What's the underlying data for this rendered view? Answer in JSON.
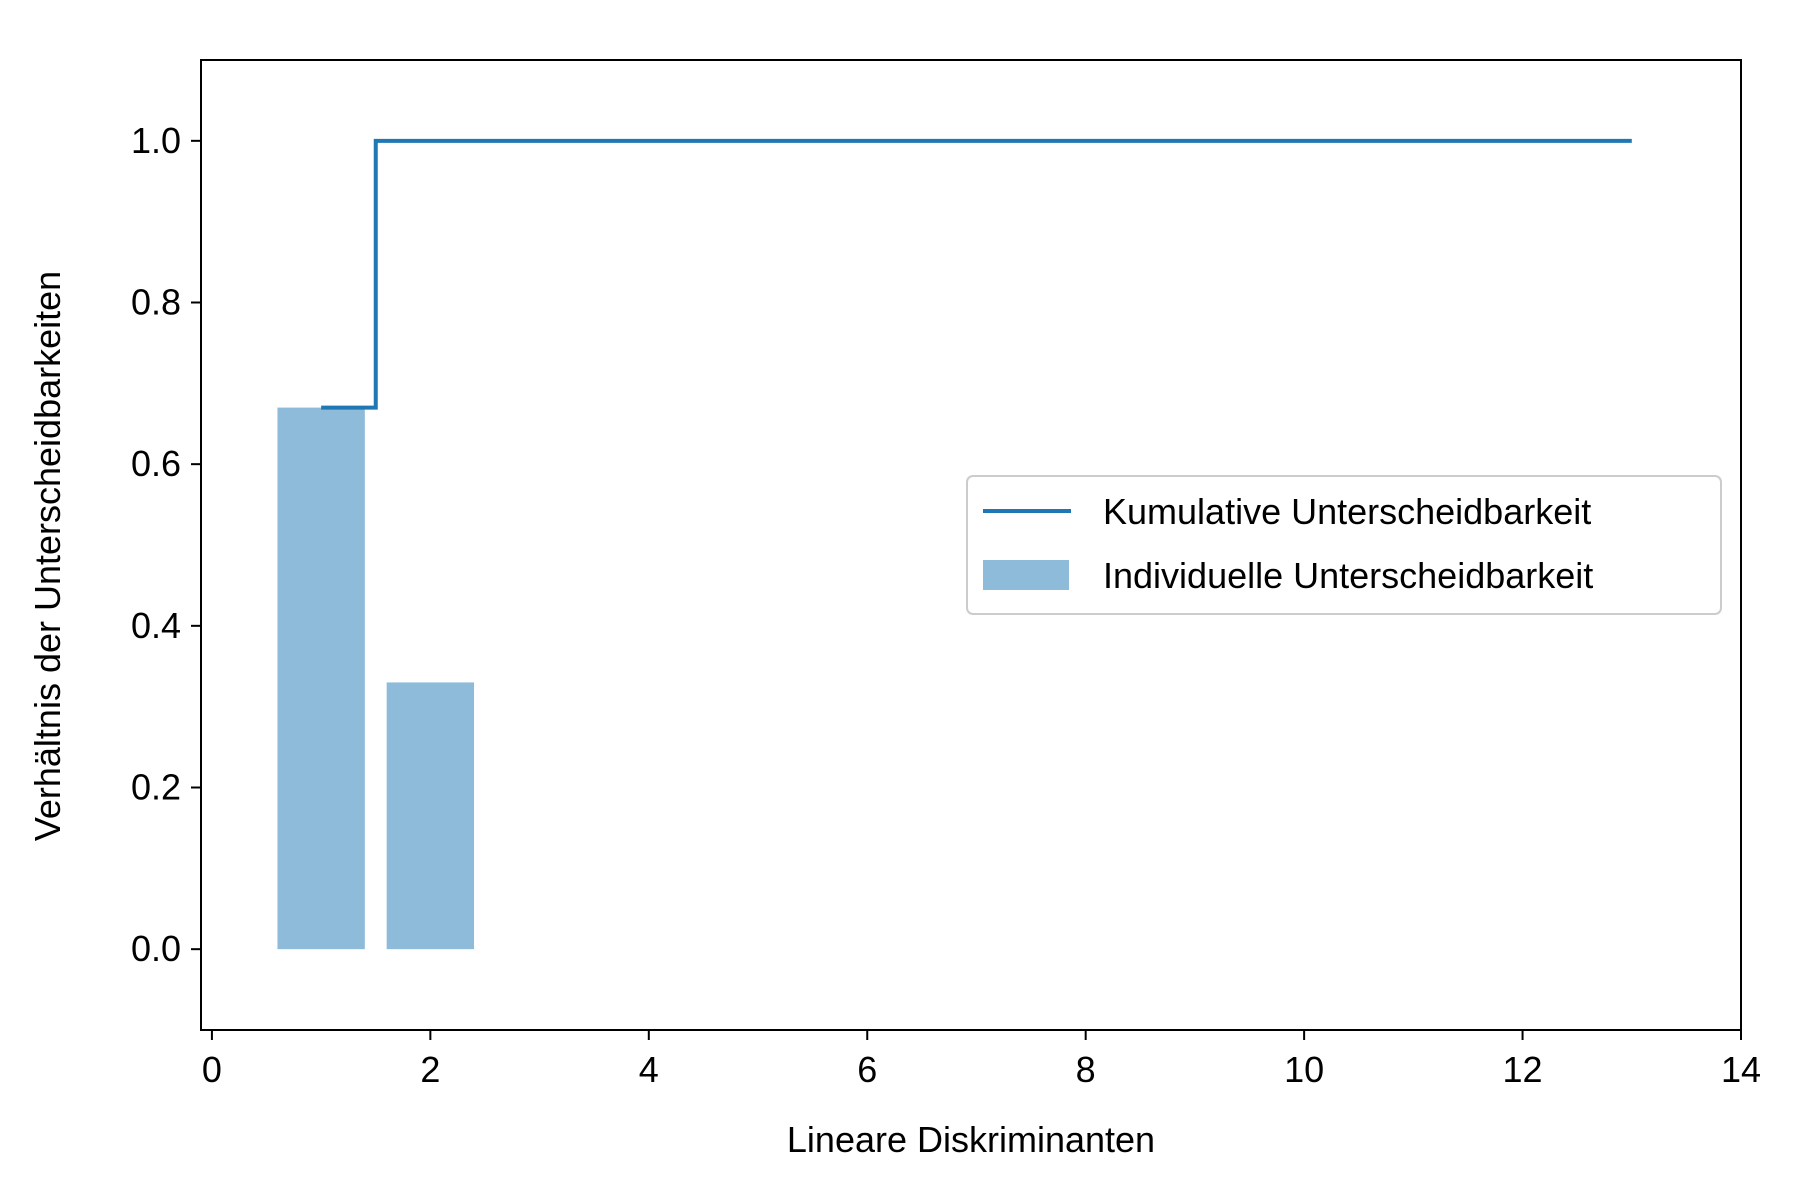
{
  "chart_data": {
    "type": "bar",
    "xlabel": "Lineare Diskriminanten",
    "ylabel": "Verhältnis der Unterscheidbarkeiten",
    "xlim": [
      -0.1,
      14.0
    ],
    "ylim": [
      -0.1,
      1.1
    ],
    "xticks": [
      0,
      2,
      4,
      6,
      8,
      10,
      12,
      14
    ],
    "yticks": [
      0.0,
      0.2,
      0.4,
      0.6,
      0.8,
      1.0
    ],
    "xtick_labels": [
      "0",
      "2",
      "4",
      "6",
      "8",
      "10",
      "12",
      "14"
    ],
    "ytick_labels": [
      "0.0",
      "0.2",
      "0.4",
      "0.6",
      "0.8",
      "1.0"
    ],
    "grid": false,
    "legend_position": "center-right",
    "series": [
      {
        "name": "Kumulative Unterscheidbarkeit",
        "kind": "step",
        "color": "#1f77b4",
        "x": [
          1,
          2,
          3,
          4,
          5,
          6,
          7,
          8,
          9,
          10,
          11,
          12,
          13
        ],
        "values": [
          0.67,
          1.0,
          1.0,
          1.0,
          1.0,
          1.0,
          1.0,
          1.0,
          1.0,
          1.0,
          1.0,
          1.0,
          1.0
        ]
      },
      {
        "name": "Individuelle Unterscheidbarkeit",
        "kind": "bar",
        "color": "#8fbbda",
        "x": [
          1,
          2
        ],
        "values": [
          0.67,
          0.33
        ]
      }
    ]
  }
}
